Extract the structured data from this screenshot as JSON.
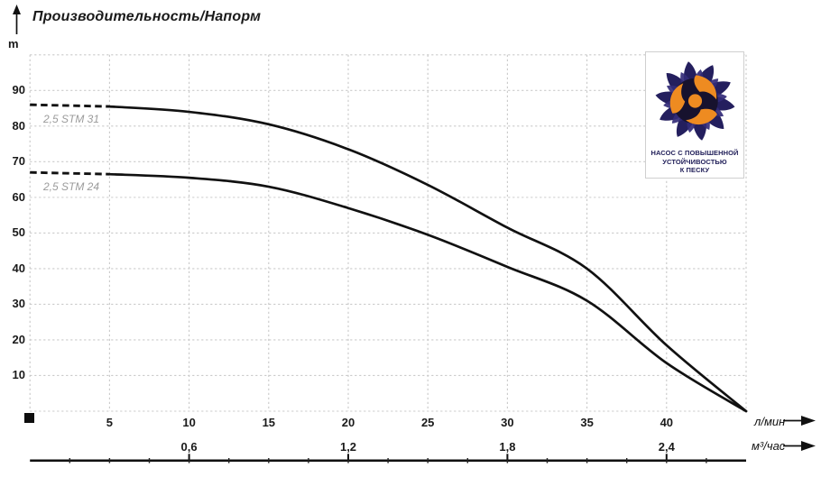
{
  "header": {
    "title": "Производительность/Напорм"
  },
  "chart_data": {
    "type": "line",
    "title": "Производительность/Напорм",
    "grid": "dashed",
    "curve_color": "#111111",
    "grid_color": "#c9c9c9",
    "y_axis": {
      "unit": "m",
      "min": 0,
      "max": 100,
      "tick_step": 10,
      "tick_labels": [
        90,
        80,
        70,
        60,
        50,
        40,
        30,
        20,
        10
      ]
    },
    "x_axis_primary": {
      "unit": "л/мин",
      "min": 0,
      "max": 45,
      "tick_step": 5,
      "tick_labels": [
        5,
        10,
        15,
        20,
        25,
        30,
        35,
        40
      ]
    },
    "x_axis_secondary": {
      "unit": "м³/час",
      "ticks": [
        {
          "label": "0,6",
          "lmin": 10
        },
        {
          "label": "1,2",
          "lmin": 20
        },
        {
          "label": "1,8",
          "lmin": 30
        },
        {
          "label": "2,4",
          "lmin": 40
        }
      ]
    },
    "series": [
      {
        "name": "2,5 STM 31",
        "dashed_until_lmin": 5,
        "points_lmin_m": [
          [
            0,
            86
          ],
          [
            5,
            85.5
          ],
          [
            10,
            84
          ],
          [
            15,
            80.5
          ],
          [
            20,
            73.5
          ],
          [
            25,
            63.5
          ],
          [
            30,
            51.5
          ],
          [
            35,
            40
          ],
          [
            40,
            18.5
          ],
          [
            45,
            0
          ]
        ]
      },
      {
        "name": "2,5 STM 24",
        "dashed_until_lmin": 5,
        "points_lmin_m": [
          [
            0,
            67
          ],
          [
            5,
            66.5
          ],
          [
            10,
            65.5
          ],
          [
            15,
            63
          ],
          [
            20,
            57
          ],
          [
            25,
            49.5
          ],
          [
            30,
            40.5
          ],
          [
            35,
            31
          ],
          [
            40,
            13.5
          ],
          [
            45,
            0
          ]
        ]
      }
    ]
  },
  "badge": {
    "lines": [
      "НАСОС С ПОВЫШЕННОЙ",
      "УСТОЙЧИВОСТЬЮ",
      "К ПЕСКУ"
    ],
    "colors": {
      "navy": "#241f5e",
      "navy2": "#332b78",
      "dark": "#17122e",
      "orange": "#ee8b21",
      "text": "#22205a"
    }
  }
}
